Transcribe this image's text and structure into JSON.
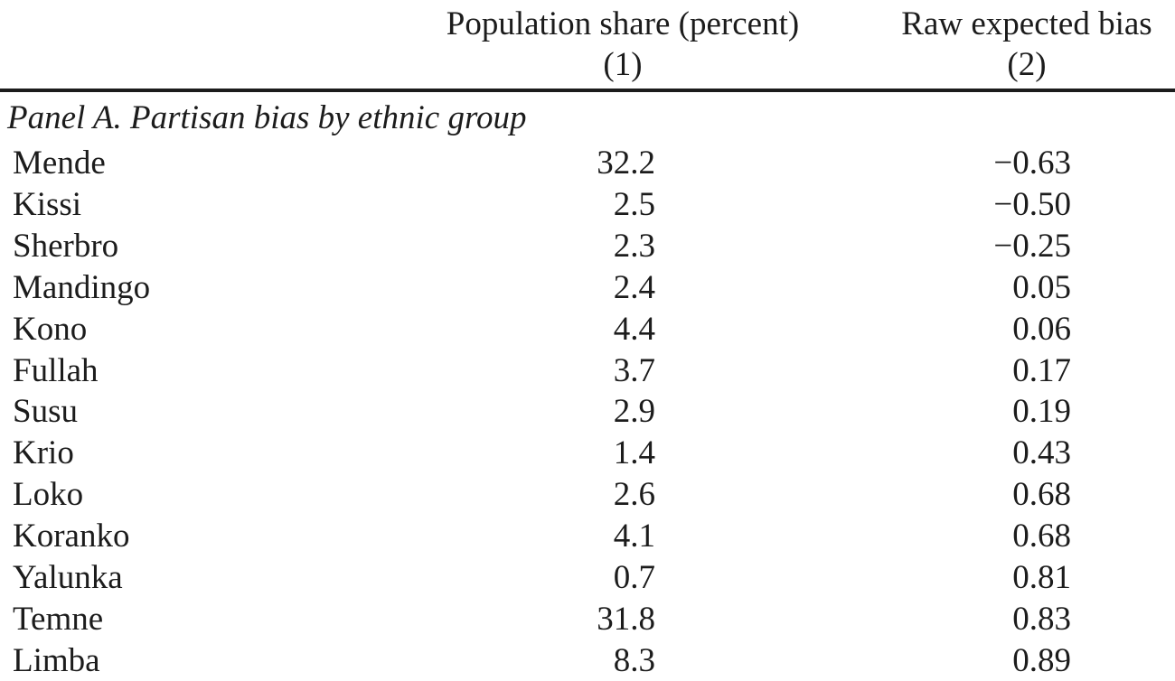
{
  "table": {
    "columns": [
      {
        "title": "Population share (percent)",
        "number": "(1)"
      },
      {
        "title": "Raw expected bias",
        "number": "(2)"
      }
    ],
    "panel_heading": "Panel A. Partisan bias by ethnic group",
    "rows": [
      {
        "group": "Mende",
        "population_share": "32.2",
        "raw_expected_bias": "−0.63"
      },
      {
        "group": "Kissi",
        "population_share": "2.5",
        "raw_expected_bias": "−0.50"
      },
      {
        "group": "Sherbro",
        "population_share": "2.3",
        "raw_expected_bias": "−0.25"
      },
      {
        "group": "Mandingo",
        "population_share": "2.4",
        "raw_expected_bias": "0.05"
      },
      {
        "group": "Kono",
        "population_share": "4.4",
        "raw_expected_bias": "0.06"
      },
      {
        "group": "Fullah",
        "population_share": "3.7",
        "raw_expected_bias": "0.17"
      },
      {
        "group": "Susu",
        "population_share": "2.9",
        "raw_expected_bias": "0.19"
      },
      {
        "group": "Krio",
        "population_share": "1.4",
        "raw_expected_bias": "0.43"
      },
      {
        "group": "Loko",
        "population_share": "2.6",
        "raw_expected_bias": "0.68"
      },
      {
        "group": "Koranko",
        "population_share": "4.1",
        "raw_expected_bias": "0.68"
      },
      {
        "group": "Yalunka",
        "population_share": "0.7",
        "raw_expected_bias": "0.81"
      },
      {
        "group": "Temne",
        "population_share": "31.8",
        "raw_expected_bias": "0.83"
      },
      {
        "group": "Limba",
        "population_share": "8.3",
        "raw_expected_bias": "0.89"
      }
    ],
    "text_color": "#1c1c1c",
    "background_color": "#ffffff"
  },
  "chart_data": {
    "type": "table",
    "title": "Panel A. Partisan bias by ethnic group",
    "categories": [
      "Mende",
      "Kissi",
      "Sherbro",
      "Mandingo",
      "Kono",
      "Fullah",
      "Susu",
      "Krio",
      "Loko",
      "Koranko",
      "Yalunka",
      "Temne",
      "Limba"
    ],
    "series": [
      {
        "name": "Population share (percent)",
        "values": [
          32.2,
          2.5,
          2.3,
          2.4,
          4.4,
          3.7,
          2.9,
          1.4,
          2.6,
          4.1,
          0.7,
          31.8,
          8.3
        ]
      },
      {
        "name": "Raw expected bias",
        "values": [
          -0.63,
          -0.5,
          -0.25,
          0.05,
          0.06,
          0.17,
          0.19,
          0.43,
          0.68,
          0.68,
          0.81,
          0.83,
          0.89
        ]
      }
    ]
  }
}
